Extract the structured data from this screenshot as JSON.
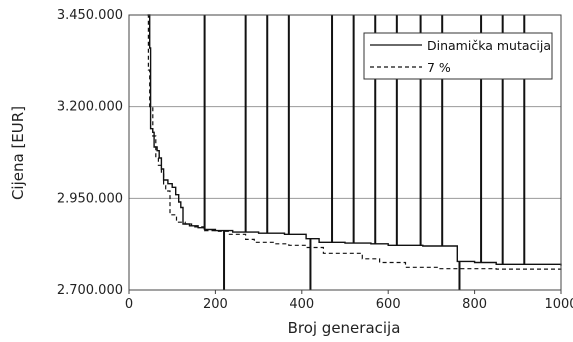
{
  "chart_data": {
    "type": "line",
    "xlabel": "Broj generacija",
    "ylabel": "Cijena [EUR]",
    "xlim": [
      0,
      1000
    ],
    "ylim": [
      2700000,
      3450000
    ],
    "x_ticks": [
      0,
      200,
      400,
      600,
      800,
      1000
    ],
    "y_ticks": [
      {
        "value": 2700000,
        "label": "2.700.000"
      },
      {
        "value": 2950000,
        "label": "2.950.000"
      },
      {
        "value": 3200000,
        "label": "3.200.000"
      },
      {
        "value": 3450000,
        "label": "3.450.000"
      }
    ],
    "grid": "horizontal",
    "legend_position": "top-right",
    "series": [
      {
        "name": "Dinamička mutacija",
        "style": "solid",
        "color": "#111111",
        "points": [
          [
            45,
            3450000
          ],
          [
            48,
            3360000
          ],
          [
            50,
            3140000
          ],
          [
            55,
            3130000
          ],
          [
            58,
            3090000
          ],
          [
            65,
            3080000
          ],
          [
            70,
            3060000
          ],
          [
            75,
            3030000
          ],
          [
            80,
            3000000
          ],
          [
            90,
            2990000
          ],
          [
            100,
            2980000
          ],
          [
            108,
            2960000
          ],
          [
            115,
            2940000
          ],
          [
            120,
            2925000
          ],
          [
            125,
            2880000
          ],
          [
            140,
            2875000
          ],
          [
            160,
            2870000
          ],
          [
            175,
            2865000
          ],
          [
            200,
            2862000
          ],
          [
            240,
            2858000
          ],
          [
            300,
            2855000
          ],
          [
            360,
            2852000
          ],
          [
            410,
            2840000
          ],
          [
            440,
            2830000
          ],
          [
            500,
            2828000
          ],
          [
            560,
            2826000
          ],
          [
            600,
            2822000
          ],
          [
            680,
            2820000
          ],
          [
            760,
            2778000
          ],
          [
            800,
            2775000
          ],
          [
            850,
            2770000
          ],
          [
            1000,
            2766000
          ]
        ],
        "spikes": [
          {
            "x": 175,
            "to": 3450000
          },
          {
            "x": 220,
            "to": 2700000
          },
          {
            "x": 270,
            "to": 3450000
          },
          {
            "x": 320,
            "to": 3450000
          },
          {
            "x": 370,
            "to": 3450000
          },
          {
            "x": 420,
            "to": 2700000
          },
          {
            "x": 470,
            "to": 3450000
          },
          {
            "x": 520,
            "to": 3450000
          },
          {
            "x": 570,
            "to": 3450000
          },
          {
            "x": 620,
            "to": 3450000
          },
          {
            "x": 675,
            "to": 3450000
          },
          {
            "x": 725,
            "to": 3450000
          },
          {
            "x": 765,
            "to": 2700000
          },
          {
            "x": 815,
            "to": 3450000
          },
          {
            "x": 865,
            "to": 3450000
          },
          {
            "x": 915,
            "to": 3450000
          }
        ]
      },
      {
        "name": "7 %",
        "style": "dashed",
        "color": "#111111",
        "points": [
          [
            42,
            3450000
          ],
          [
            45,
            3300000
          ],
          [
            48,
            3200000
          ],
          [
            55,
            3120000
          ],
          [
            62,
            3060000
          ],
          [
            68,
            3040000
          ],
          [
            75,
            3020000
          ],
          [
            80,
            2985000
          ],
          [
            85,
            2970000
          ],
          [
            95,
            2905000
          ],
          [
            110,
            2885000
          ],
          [
            130,
            2880000
          ],
          [
            145,
            2872000
          ],
          [
            175,
            2862000
          ],
          [
            200,
            2860000
          ],
          [
            230,
            2852000
          ],
          [
            270,
            2838000
          ],
          [
            290,
            2830000
          ],
          [
            340,
            2826000
          ],
          [
            370,
            2822000
          ],
          [
            410,
            2816000
          ],
          [
            450,
            2800000
          ],
          [
            520,
            2800000
          ],
          [
            540,
            2785000
          ],
          [
            580,
            2775000
          ],
          [
            640,
            2762000
          ],
          [
            720,
            2758000
          ],
          [
            850,
            2757000
          ],
          [
            1000,
            2755000
          ]
        ]
      }
    ]
  }
}
